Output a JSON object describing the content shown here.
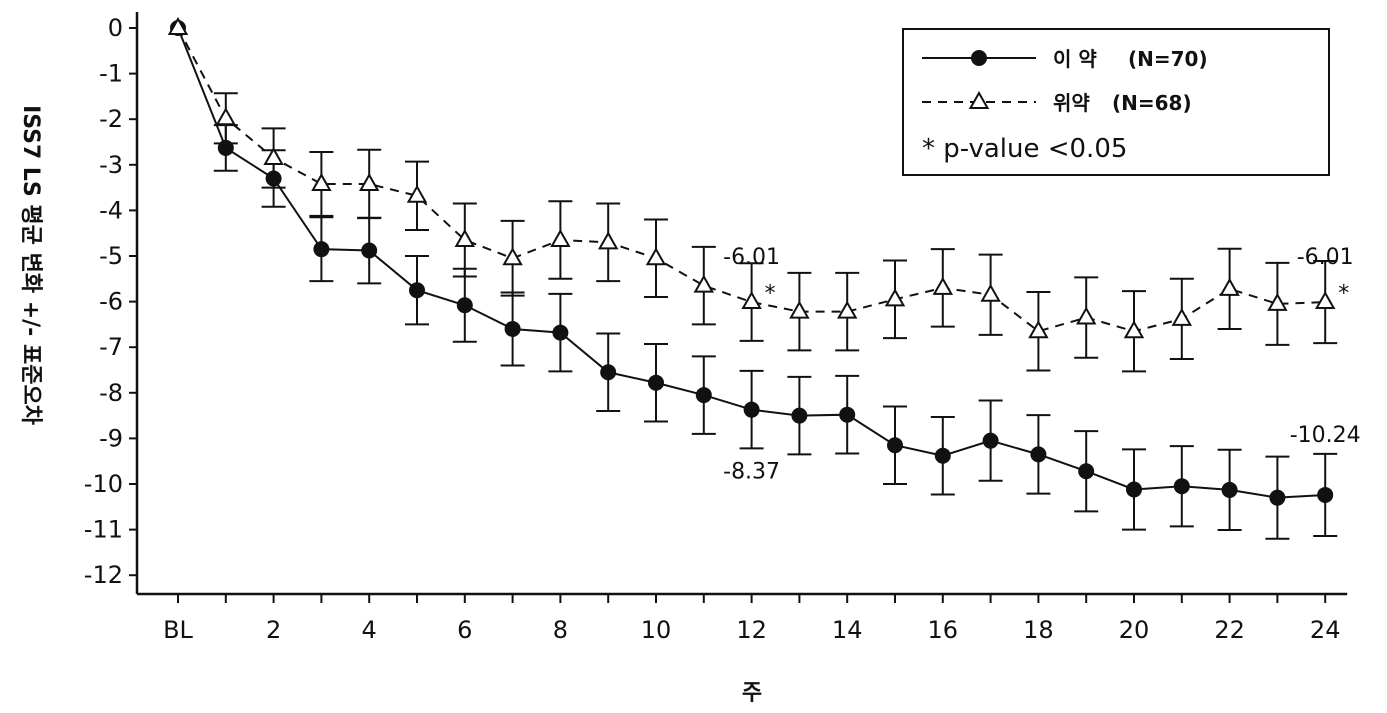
{
  "chart_data": {
    "type": "line",
    "xlabel": "주",
    "ylabel": "ISS7 LS 평균 변화 +/- 표준오차",
    "ylim": [
      -12,
      0
    ],
    "yticks": [
      "0",
      "-1",
      "-2",
      "-3",
      "-4",
      "-5",
      "-6",
      "-7",
      "-8",
      "-9",
      "-10",
      "-11",
      "-12"
    ],
    "x": [
      "BL",
      "1",
      "2",
      "3",
      "4",
      "5",
      "6",
      "7",
      "8",
      "9",
      "10",
      "11",
      "12",
      "13",
      "14",
      "15",
      "16",
      "17",
      "18",
      "19",
      "20",
      "21",
      "22",
      "23",
      "24"
    ],
    "xtick_labels": [
      "BL",
      "2",
      "4",
      "6",
      "8",
      "10",
      "12",
      "14",
      "16",
      "18",
      "20",
      "22",
      "24"
    ],
    "grid": false,
    "legend_position": "top-right",
    "series": [
      {
        "name": "이 약",
        "n_label": "(N=70)",
        "marker": "filled-circle",
        "line": "solid",
        "values": [
          0,
          -2.63,
          -3.3,
          -4.85,
          -4.88,
          -5.75,
          -6.08,
          -6.6,
          -6.68,
          -7.55,
          -7.78,
          -8.05,
          -8.37,
          -8.5,
          -8.48,
          -9.15,
          -9.38,
          -9.05,
          -9.35,
          -9.72,
          -10.12,
          -10.05,
          -10.13,
          -10.3,
          -10.24
        ],
        "errors": [
          0,
          0.5,
          0.62,
          0.7,
          0.72,
          0.75,
          0.8,
          0.8,
          0.85,
          0.85,
          0.85,
          0.85,
          0.85,
          0.85,
          0.85,
          0.85,
          0.85,
          0.88,
          0.86,
          0.88,
          0.88,
          0.88,
          0.88,
          0.9,
          0.9
        ]
      },
      {
        "name": "위약",
        "n_label": "(N=68)",
        "marker": "open-triangle",
        "line": "dashed",
        "values": [
          0,
          -1.98,
          -2.85,
          -3.42,
          -3.42,
          -3.68,
          -4.65,
          -5.05,
          -4.65,
          -4.7,
          -5.05,
          -5.65,
          -6.01,
          -6.22,
          -6.22,
          -5.95,
          -5.7,
          -5.85,
          -6.65,
          -6.35,
          -6.65,
          -6.38,
          -5.72,
          -6.05,
          -6.01
        ],
        "errors": [
          0,
          0.55,
          0.65,
          0.7,
          0.75,
          0.75,
          0.8,
          0.82,
          0.85,
          0.85,
          0.85,
          0.85,
          0.85,
          0.85,
          0.85,
          0.85,
          0.85,
          0.88,
          0.86,
          0.88,
          0.88,
          0.88,
          0.88,
          0.9,
          0.9
        ]
      }
    ],
    "annotations": [
      {
        "id": "placebo-wk12",
        "text": "-6.01",
        "x": "12",
        "y": -5.0
      },
      {
        "id": "drug-wk12",
        "text": "-8.37",
        "x": "12",
        "y": -9.7
      },
      {
        "id": "placebo-wk24",
        "text": "-6.01",
        "x": "24",
        "y": -5.0
      },
      {
        "id": "drug-wk24",
        "text": "-10.24",
        "x": "24",
        "y": -8.9
      },
      {
        "id": "sig-wk12",
        "text": "*",
        "x": "12",
        "y": -5.8
      },
      {
        "id": "sig-wk24",
        "text": "*",
        "x": "24",
        "y": -5.8
      }
    ],
    "legend_note": "* p-value <0.05"
  }
}
